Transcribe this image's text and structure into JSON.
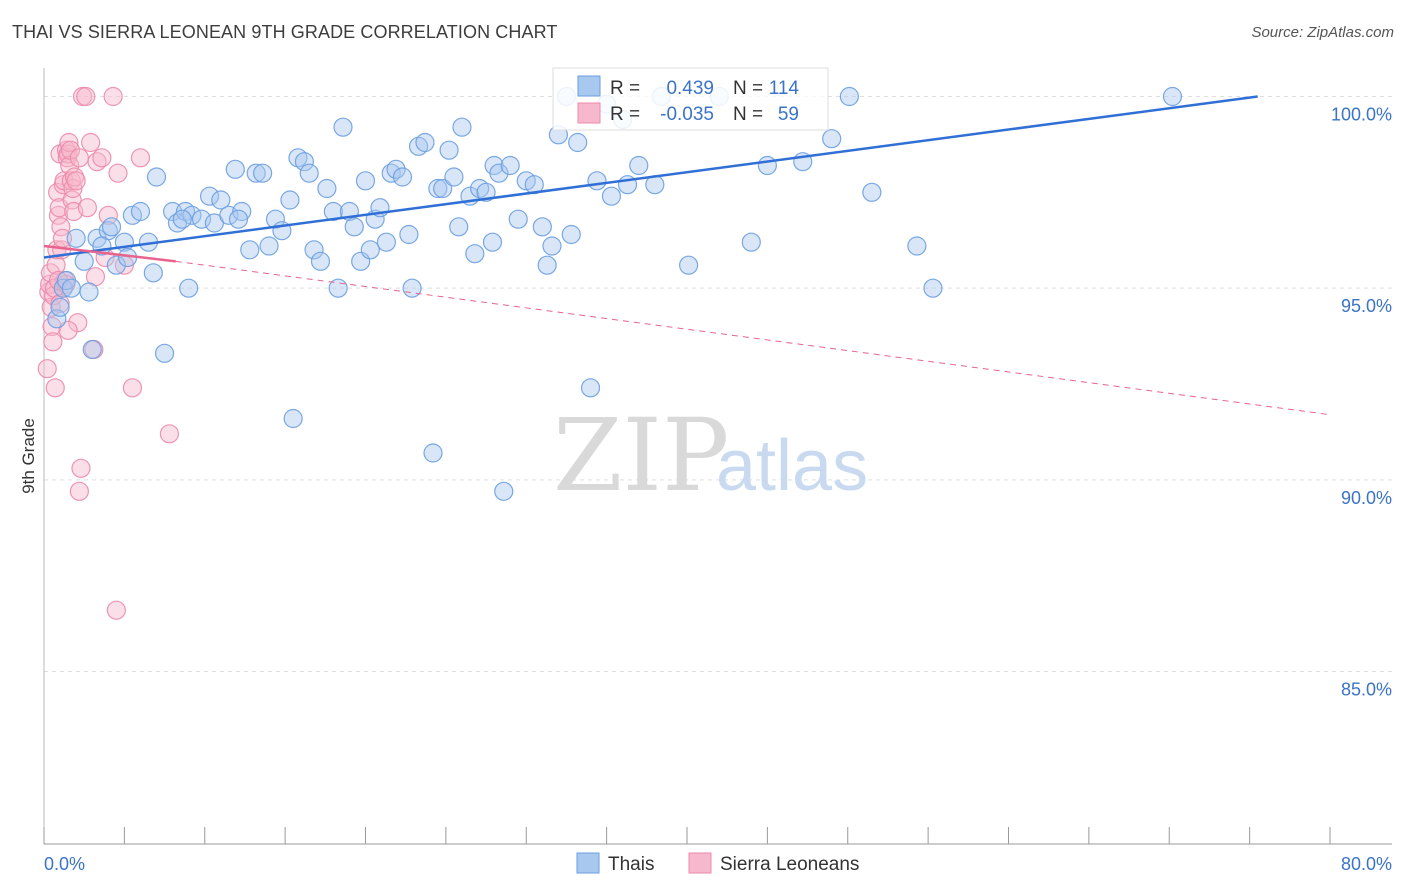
{
  "header": {
    "title": "THAI VS SIERRA LEONEAN 9TH GRADE CORRELATION CHART",
    "source": "Source: ZipAtlas.com"
  },
  "watermark": {
    "part1": "ZIP",
    "part2": "atlas"
  },
  "legend": {
    "row1": {
      "r_label": "R =",
      "r_value": "0.439",
      "n_label": "N =",
      "n_value": "114"
    },
    "row2": {
      "r_label": "R =",
      "r_value": "-0.035",
      "n_label": "N =",
      "n_value": "59"
    },
    "bottom": [
      "Thais",
      "Sierra Leoneans"
    ]
  },
  "colors": {
    "thai_fill": "#a9c8f0",
    "thai_stroke": "#6b9ee0",
    "thai_line": "#2f6fd6",
    "sl_fill": "#f6b8cc",
    "sl_stroke": "#ec8aaa",
    "sl_line": "#e8638d",
    "tick_text": "#3b73c7",
    "grid": "#dedede"
  },
  "chart_data": {
    "type": "scatter",
    "title": "THAI VS SIERRA LEONEAN 9TH GRADE CORRELATION CHART",
    "xlabel": "",
    "ylabel": "9th Grade",
    "xlim": [
      0,
      80
    ],
    "ylim": [
      80.5,
      100.9
    ],
    "x_tick_labels": [
      "0.0%",
      "80.0%"
    ],
    "y_ticks": [
      85,
      90,
      95,
      100
    ],
    "y_tick_labels": [
      "85.0%",
      "90.0%",
      "95.0%",
      "100.0%"
    ],
    "grid": true,
    "legend_position": "top-center",
    "series": [
      {
        "name": "Thais",
        "R": 0.439,
        "N": 114,
        "trend": {
          "x": [
            0,
            75.5
          ],
          "y": [
            95.8,
            100.0
          ],
          "style": "solid"
        },
        "points": [
          [
            0.8,
            94.2
          ],
          [
            1.0,
            94.5
          ],
          [
            1.2,
            95.0
          ],
          [
            1.4,
            95.2
          ],
          [
            1.7,
            95.0
          ],
          [
            2.0,
            96.3
          ],
          [
            2.5,
            95.7
          ],
          [
            3.0,
            93.4
          ],
          [
            3.3,
            96.3
          ],
          [
            4.0,
            96.5
          ],
          [
            4.2,
            96.6
          ],
          [
            4.5,
            95.6
          ],
          [
            5.0,
            96.2
          ],
          [
            5.5,
            96.9
          ],
          [
            6.0,
            97.0
          ],
          [
            6.5,
            96.2
          ],
          [
            7.0,
            97.9
          ],
          [
            7.5,
            93.3
          ],
          [
            8.0,
            97.0
          ],
          [
            8.3,
            96.7
          ],
          [
            8.8,
            97.0
          ],
          [
            9.0,
            95.0
          ],
          [
            9.2,
            96.9
          ],
          [
            9.8,
            96.8
          ],
          [
            10.3,
            97.4
          ],
          [
            10.6,
            96.7
          ],
          [
            11.0,
            97.3
          ],
          [
            11.5,
            96.9
          ],
          [
            11.9,
            98.1
          ],
          [
            12.3,
            97.0
          ],
          [
            12.8,
            96.0
          ],
          [
            13.2,
            98.0
          ],
          [
            13.6,
            98.0
          ],
          [
            14.0,
            96.1
          ],
          [
            14.4,
            96.8
          ],
          [
            14.8,
            96.5
          ],
          [
            15.3,
            97.3
          ],
          [
            15.5,
            91.6
          ],
          [
            15.8,
            98.4
          ],
          [
            16.2,
            98.3
          ],
          [
            16.5,
            98.0
          ],
          [
            16.8,
            96.0
          ],
          [
            17.2,
            95.7
          ],
          [
            17.6,
            97.6
          ],
          [
            18.0,
            97.0
          ],
          [
            18.3,
            95.0
          ],
          [
            18.6,
            99.2
          ],
          [
            19.0,
            97.0
          ],
          [
            19.3,
            96.6
          ],
          [
            19.7,
            95.7
          ],
          [
            20.0,
            97.8
          ],
          [
            20.3,
            96.0
          ],
          [
            20.6,
            96.8
          ],
          [
            20.9,
            97.1
          ],
          [
            21.3,
            96.2
          ],
          [
            21.6,
            98.0
          ],
          [
            21.9,
            98.1
          ],
          [
            22.3,
            97.9
          ],
          [
            22.7,
            96.4
          ],
          [
            22.9,
            95.0
          ],
          [
            23.3,
            98.7
          ],
          [
            23.7,
            98.8
          ],
          [
            24.2,
            90.7
          ],
          [
            24.5,
            97.6
          ],
          [
            24.8,
            97.6
          ],
          [
            25.2,
            98.6
          ],
          [
            25.5,
            97.9
          ],
          [
            26.0,
            99.2
          ],
          [
            26.5,
            97.4
          ],
          [
            26.8,
            95.9
          ],
          [
            27.1,
            97.6
          ],
          [
            27.5,
            97.5
          ],
          [
            28.0,
            98.2
          ],
          [
            28.3,
            98.0
          ],
          [
            28.6,
            89.7
          ],
          [
            29.0,
            98.2
          ],
          [
            29.5,
            96.8
          ],
          [
            30.0,
            97.8
          ],
          [
            30.5,
            97.7
          ],
          [
            31.0,
            96.6
          ],
          [
            31.3,
            95.6
          ],
          [
            32.0,
            99.0
          ],
          [
            32.5,
            100.0
          ],
          [
            32.8,
            96.4
          ],
          [
            33.2,
            98.8
          ],
          [
            34.0,
            92.4
          ],
          [
            34.4,
            97.8
          ],
          [
            35.0,
            99.8
          ],
          [
            35.3,
            97.4
          ],
          [
            36.0,
            99.4
          ],
          [
            36.3,
            97.7
          ],
          [
            37.0,
            98.2
          ],
          [
            38.0,
            97.7
          ],
          [
            38.4,
            100.0
          ],
          [
            42.0,
            100.0
          ],
          [
            45.0,
            98.2
          ],
          [
            47.2,
            98.3
          ],
          [
            49.0,
            98.9
          ],
          [
            50.1,
            100.0
          ],
          [
            51.5,
            97.5
          ],
          [
            54.3,
            96.1
          ],
          [
            55.3,
            95.0
          ],
          [
            70.2,
            100.0
          ],
          [
            5.2,
            95.8
          ],
          [
            6.8,
            95.4
          ],
          [
            2.8,
            94.9
          ],
          [
            3.6,
            96.1
          ],
          [
            8.6,
            96.8
          ],
          [
            12.1,
            96.8
          ],
          [
            25.8,
            96.6
          ],
          [
            27.9,
            96.2
          ],
          [
            31.6,
            96.1
          ],
          [
            40.1,
            95.6
          ],
          [
            44.0,
            96.2
          ]
        ]
      },
      {
        "name": "Sierra Leoneans",
        "R": -0.035,
        "N": 59,
        "trend": {
          "x": [
            0,
            8.2
          ],
          "y": [
            96.1,
            95.7
          ],
          "style": "solid",
          "extended_to": [
            80,
            91.7
          ]
        },
        "points": [
          [
            0.2,
            92.9
          ],
          [
            0.3,
            94.9
          ],
          [
            0.35,
            95.1
          ],
          [
            0.4,
            95.4
          ],
          [
            0.45,
            94.5
          ],
          [
            0.5,
            94.0
          ],
          [
            0.55,
            93.6
          ],
          [
            0.6,
            94.8
          ],
          [
            0.65,
            95.0
          ],
          [
            0.7,
            92.4
          ],
          [
            0.75,
            95.6
          ],
          [
            0.8,
            96.0
          ],
          [
            0.85,
            97.5
          ],
          [
            0.9,
            96.9
          ],
          [
            0.95,
            97.1
          ],
          [
            1.0,
            98.5
          ],
          [
            1.05,
            96.6
          ],
          [
            1.1,
            96.0
          ],
          [
            1.15,
            96.3
          ],
          [
            1.2,
            97.7
          ],
          [
            1.25,
            97.8
          ],
          [
            1.3,
            95.2
          ],
          [
            1.35,
            95.1
          ],
          [
            1.4,
            98.6
          ],
          [
            1.45,
            98.4
          ],
          [
            1.5,
            98.5
          ],
          [
            1.55,
            98.8
          ],
          [
            1.6,
            98.2
          ],
          [
            1.65,
            98.6
          ],
          [
            1.7,
            97.8
          ],
          [
            1.75,
            97.3
          ],
          [
            1.8,
            97.6
          ],
          [
            1.85,
            97.0
          ],
          [
            1.9,
            97.9
          ],
          [
            2.0,
            97.8
          ],
          [
            2.1,
            94.1
          ],
          [
            2.2,
            98.4
          ],
          [
            2.3,
            90.3
          ],
          [
            2.2,
            89.7
          ],
          [
            2.4,
            100.0
          ],
          [
            2.6,
            100.0
          ],
          [
            2.9,
            98.8
          ],
          [
            3.1,
            93.4
          ],
          [
            3.2,
            95.3
          ],
          [
            3.3,
            98.3
          ],
          [
            3.6,
            98.4
          ],
          [
            3.8,
            95.8
          ],
          [
            4.0,
            96.9
          ],
          [
            4.3,
            100.0
          ],
          [
            4.6,
            98.0
          ],
          [
            5.0,
            95.6
          ],
          [
            5.5,
            92.4
          ],
          [
            6.0,
            98.4
          ],
          [
            7.8,
            91.2
          ],
          [
            4.5,
            86.6
          ],
          [
            1.0,
            94.6
          ],
          [
            1.5,
            93.9
          ],
          [
            0.9,
            95.2
          ],
          [
            2.7,
            97.1
          ]
        ]
      }
    ]
  }
}
